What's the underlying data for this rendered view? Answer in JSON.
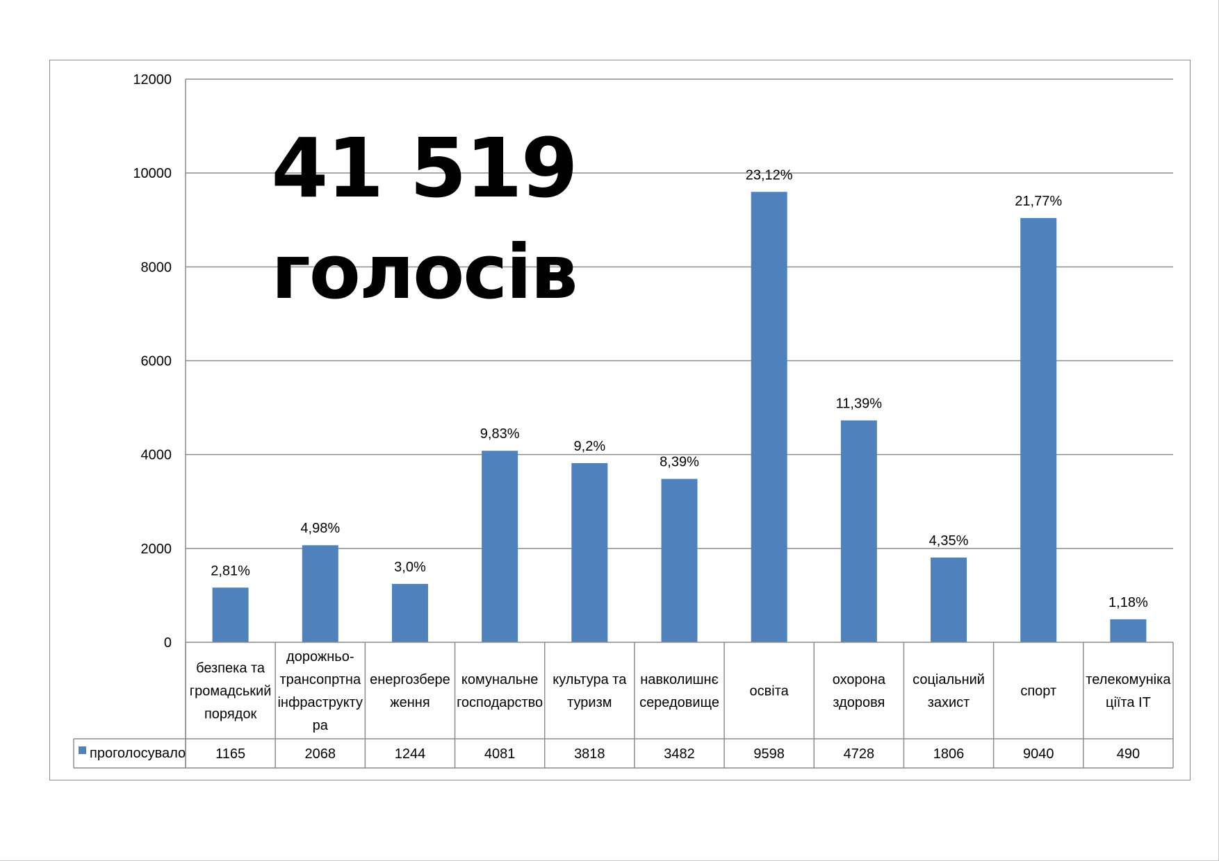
{
  "headline": {
    "line1": "41 519",
    "line2": "голосів"
  },
  "chart_data": {
    "type": "bar",
    "title": "",
    "xlabel": "",
    "ylabel": "",
    "ylim": [
      0,
      12000
    ],
    "yticks": [
      0,
      2000,
      4000,
      6000,
      8000,
      10000,
      12000
    ],
    "grid": true,
    "legend_position": "data-table-left",
    "categories": [
      [
        "безпека та",
        "громадський",
        "порядок"
      ],
      [
        "дорожньо-",
        "трансопртна",
        "інфраструкту",
        "ра"
      ],
      [
        "енергозбере",
        "ження"
      ],
      [
        "комунальне",
        "господарство"
      ],
      [
        "культура та",
        "туризм"
      ],
      [
        "навколишнє",
        "середовище"
      ],
      [
        "освіта"
      ],
      [
        "охорона",
        "здоровя"
      ],
      [
        "соціальний",
        "захист"
      ],
      [
        "спорт"
      ],
      [
        "телекомуніка",
        "ціїта IT"
      ]
    ],
    "series": [
      {
        "name": "проголосувало",
        "color": "#4f81bd",
        "values": [
          1165,
          2068,
          1244,
          4081,
          3818,
          3482,
          9598,
          4728,
          1806,
          9040,
          490
        ],
        "data_labels": [
          "2,81%",
          "4,98%",
          "3,0%",
          "9,83%",
          "9,2%",
          "8,39%",
          "23,12%",
          "11,39%",
          "4,35%",
          "21,77%",
          "1,18%"
        ]
      }
    ],
    "table_values": [
      "1165",
      "2068",
      "1244",
      "4081",
      "3818",
      "3482",
      "9598",
      "4728",
      "1806",
      "9040",
      "490"
    ]
  }
}
